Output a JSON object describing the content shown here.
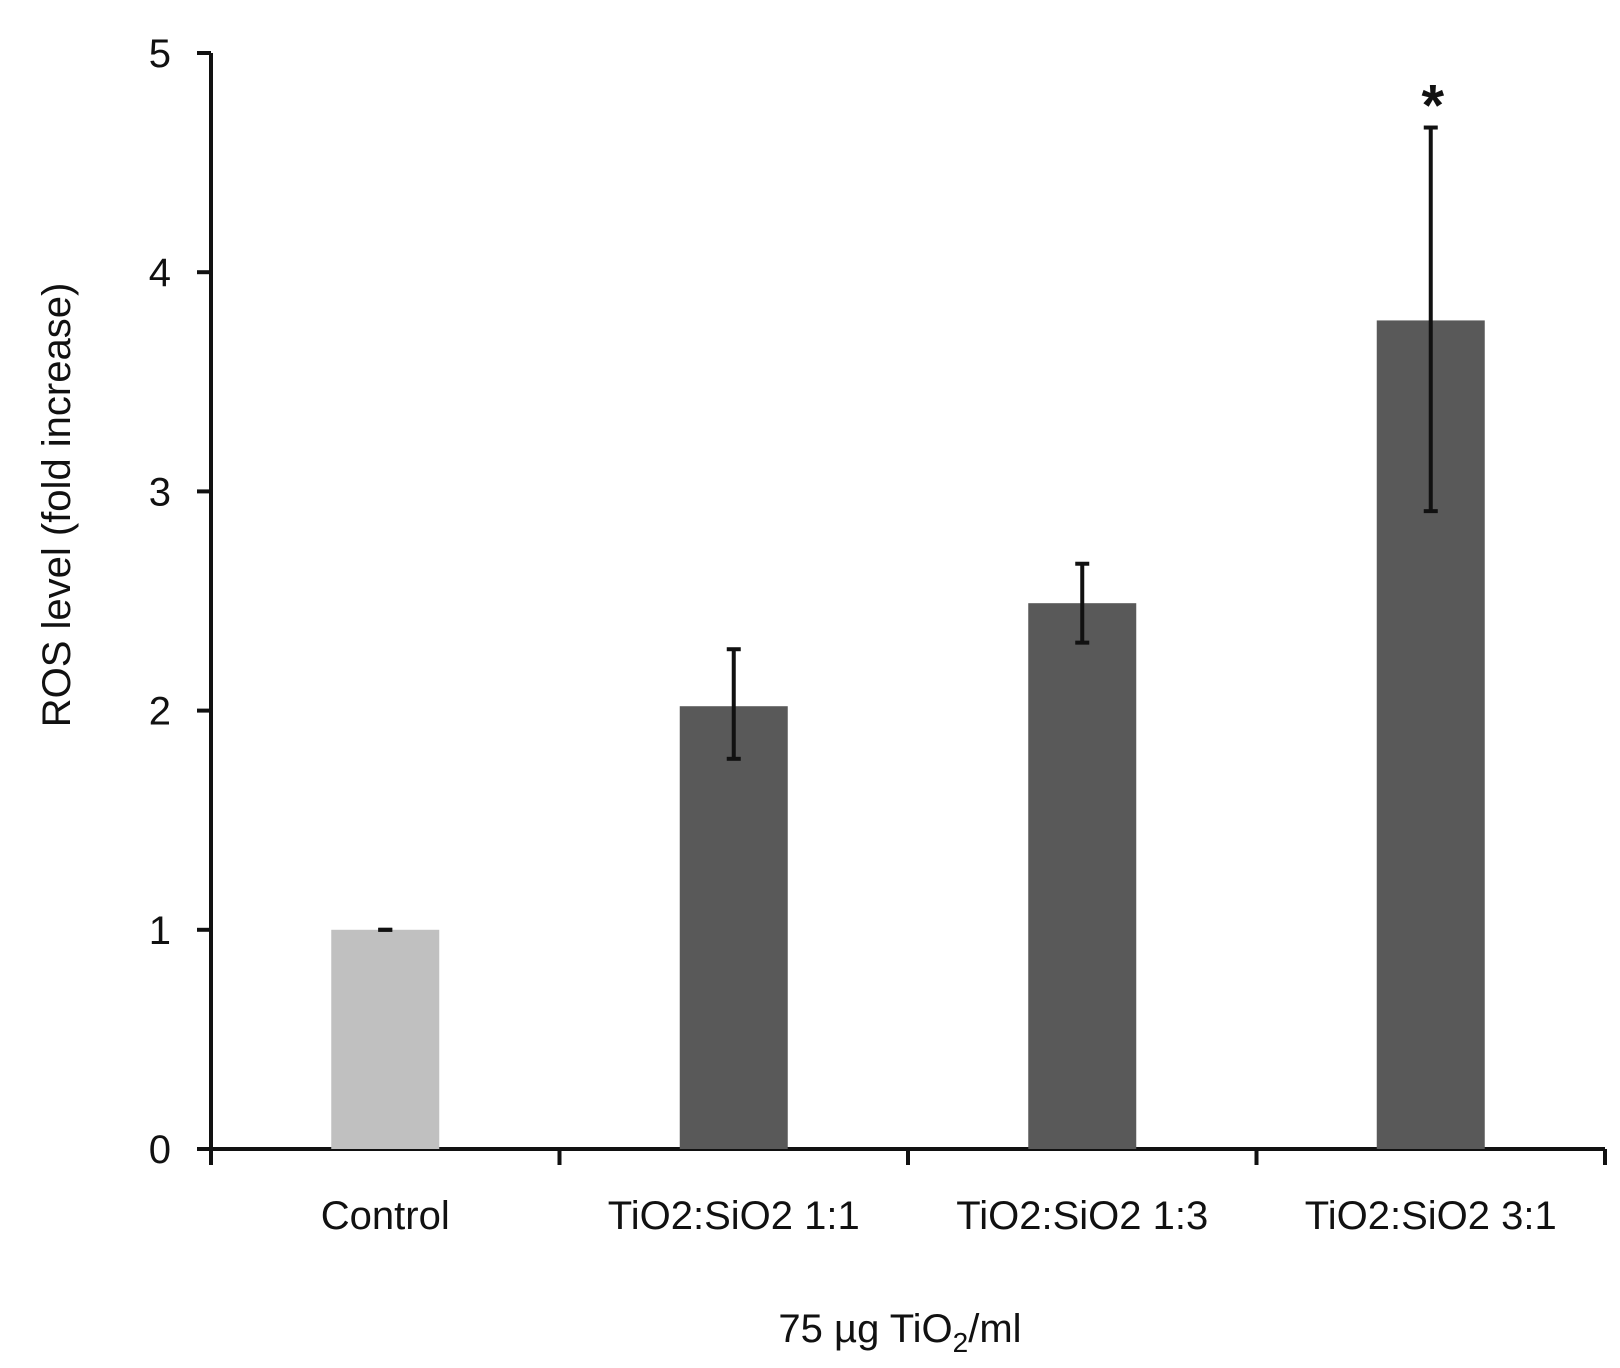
{
  "chart_data": {
    "type": "bar",
    "title": "",
    "ylabel": "ROS level (fold increase)",
    "xlabel": {
      "prefix": "75 µg TiO",
      "subscript": "2",
      "suffix": "/ml"
    },
    "ylim": [
      0,
      5
    ],
    "yticks": [
      0,
      1,
      2,
      3,
      4,
      5
    ],
    "grid": false,
    "categories": [
      "Control",
      "TiO2:SiO2 1:1",
      "TiO2:SiO2 1:3",
      "TiO2:SiO2 3:1"
    ],
    "values": [
      1.0,
      2.02,
      2.49,
      3.78
    ],
    "error_low": [
      1.0,
      1.78,
      2.31,
      2.91
    ],
    "error_high": [
      1.0,
      2.28,
      2.67,
      4.66
    ],
    "annotations": [
      "",
      "",
      "",
      "*"
    ],
    "colors": [
      "#c0c0c0",
      "#595959",
      "#595959",
      "#595959"
    ]
  }
}
